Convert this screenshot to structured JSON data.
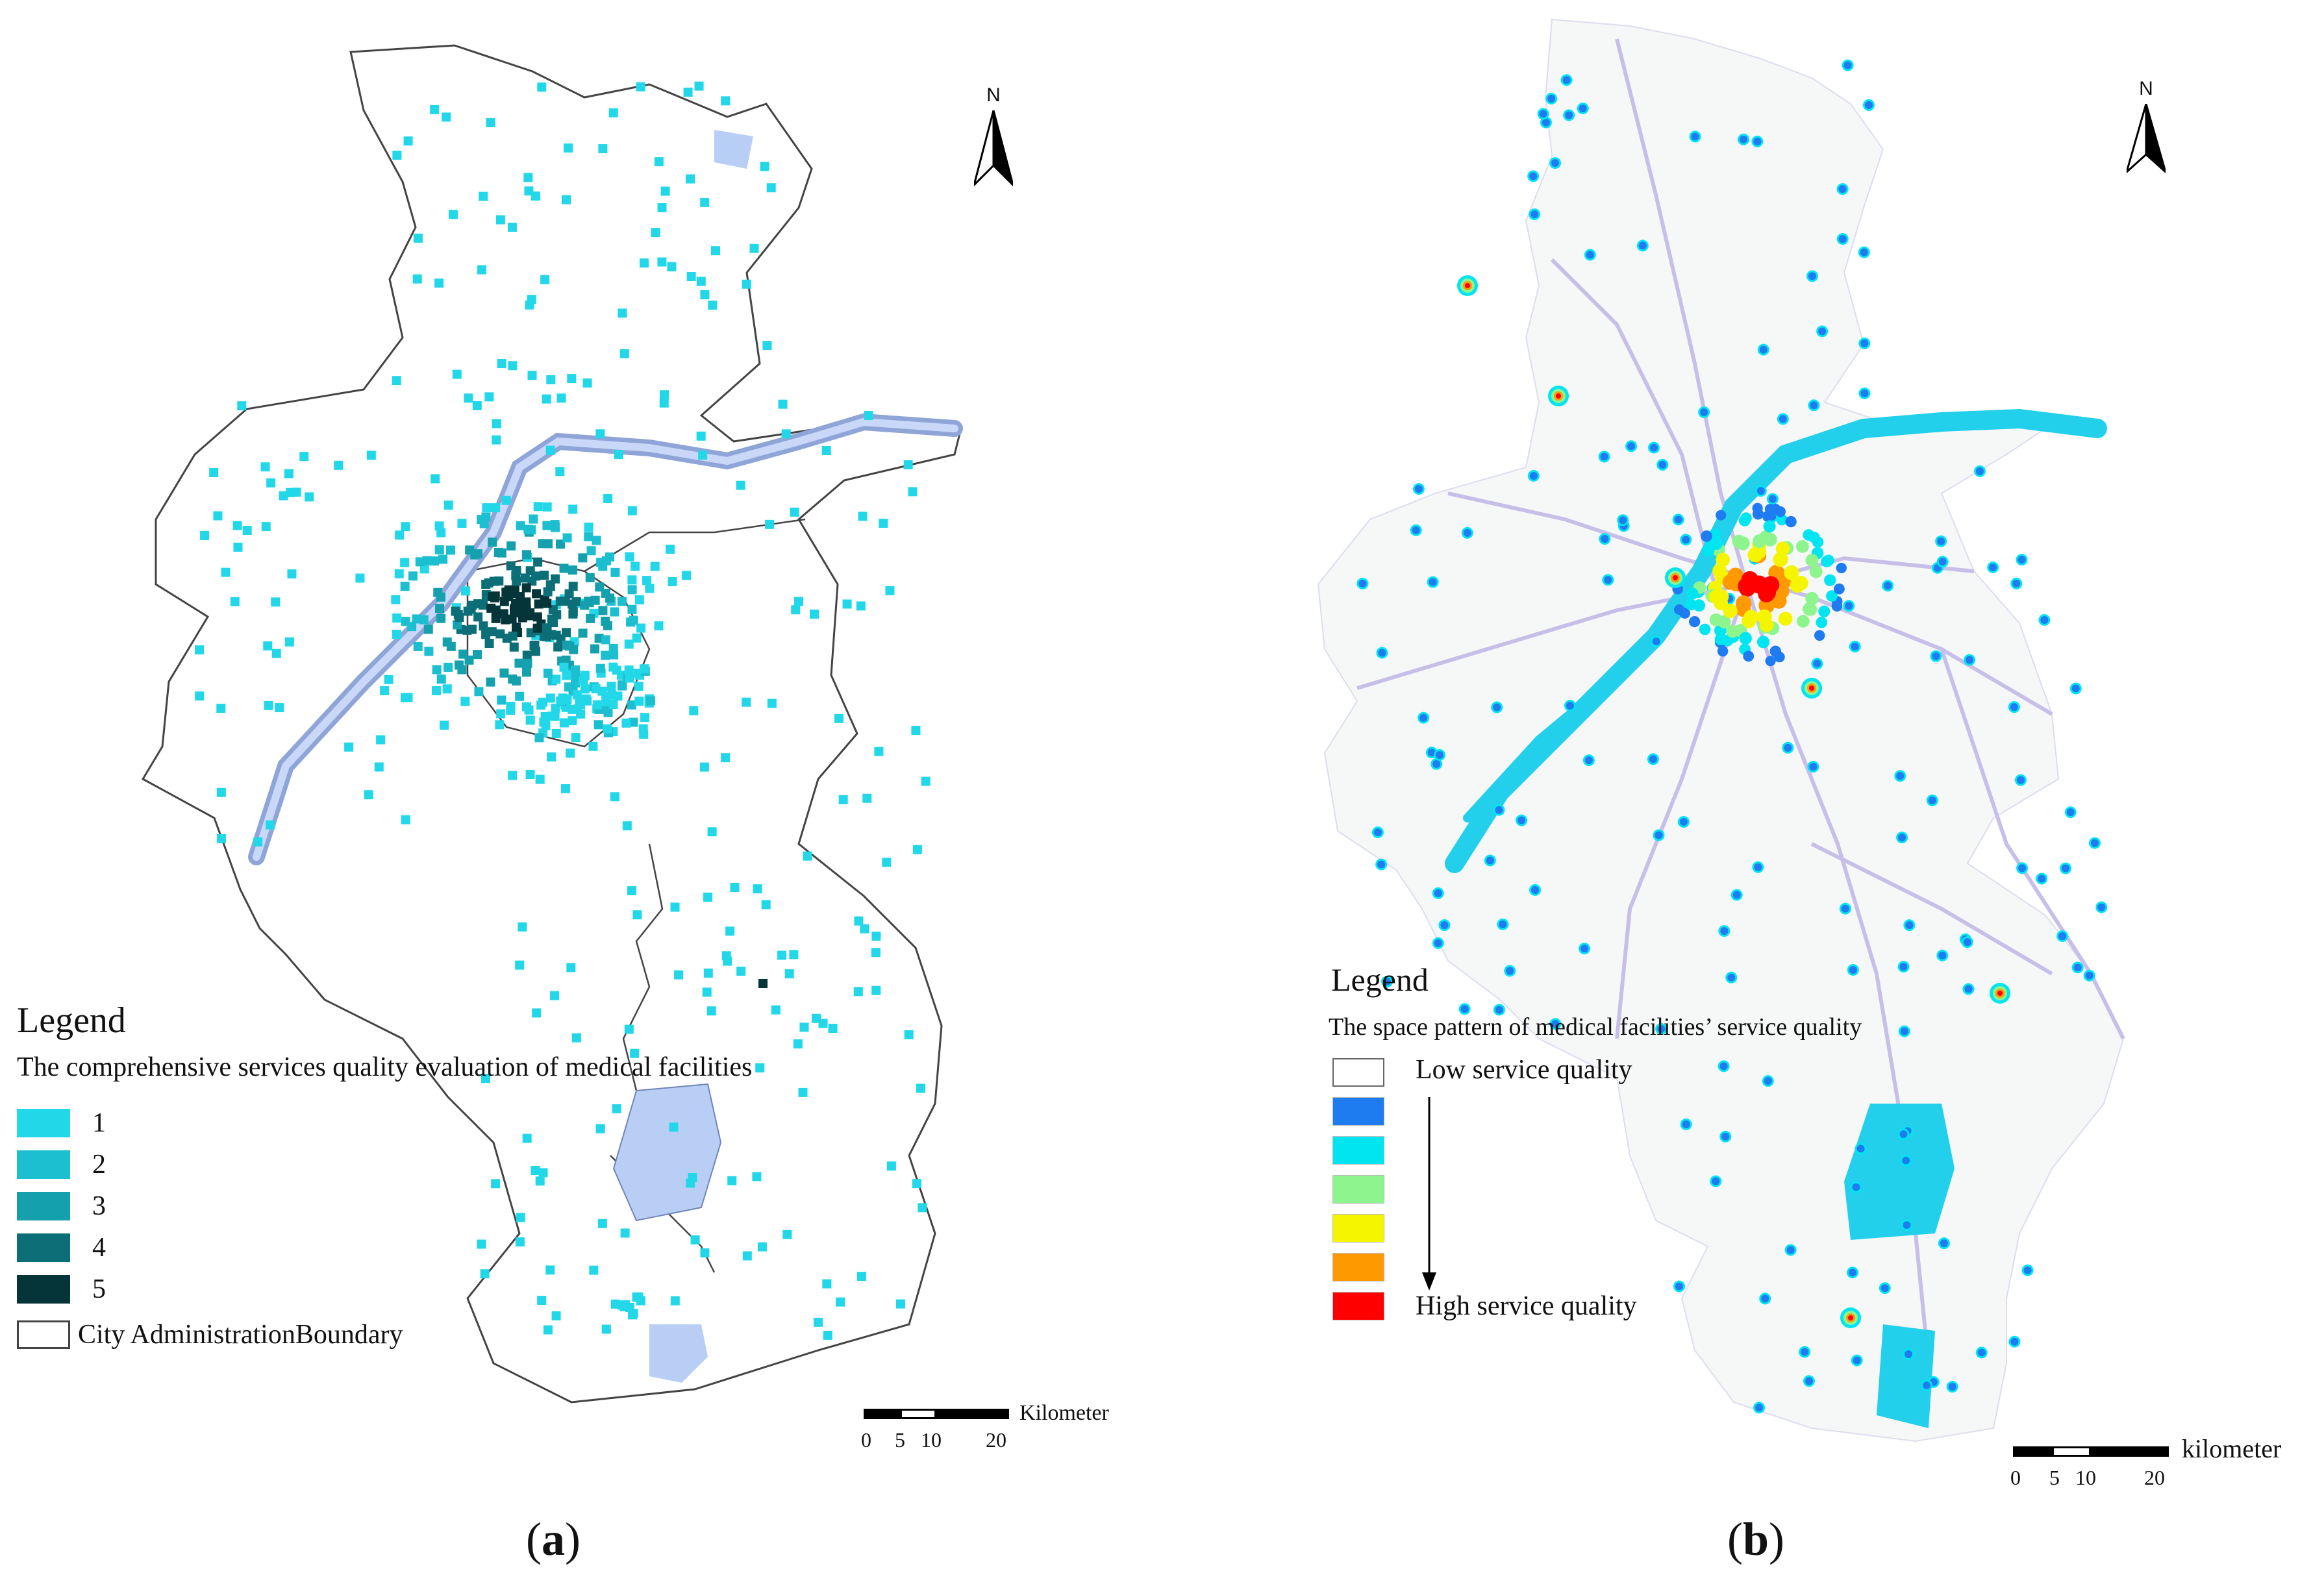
{
  "panel_a": {
    "north_label": "N",
    "legend_title": "Legend",
    "legend_subtitle": "The comprehensive services quality evaluation of medical facilities",
    "classes": [
      {
        "label": "1",
        "color": "#22d8e8"
      },
      {
        "label": "2",
        "color": "#1cbfd0"
      },
      {
        "label": "3",
        "color": "#14a0ad"
      },
      {
        "label": "4",
        "color": "#0c6f78"
      },
      {
        "label": "5",
        "color": "#053539"
      }
    ],
    "boundary_label": "City AdministrationBoundary",
    "scale_unit": "Kilometer",
    "scale_ticks": [
      "0",
      "5",
      "10",
      "20"
    ],
    "caption_open": "(",
    "caption_letter": "a",
    "caption_close": ")",
    "water_color": "#b8cef5"
  },
  "panel_b": {
    "north_label": "N",
    "legend_title": "Legend",
    "legend_subtitle": "The space pattern of medical facilities’ service quality",
    "low_label": "Low service quality",
    "high_label": "High service quality",
    "ramp_colors": [
      "#ffffff",
      "#1e7bf0",
      "#00e5f0",
      "#8ef58e",
      "#f5f500",
      "#ff9900",
      "#ff0000"
    ],
    "scale_unit": "kilometer",
    "scale_ticks": [
      "0",
      "5",
      "10",
      "20"
    ],
    "caption_open": "(",
    "caption_letter": "b",
    "caption_close": ")",
    "river_color": "#22d0ec"
  }
}
